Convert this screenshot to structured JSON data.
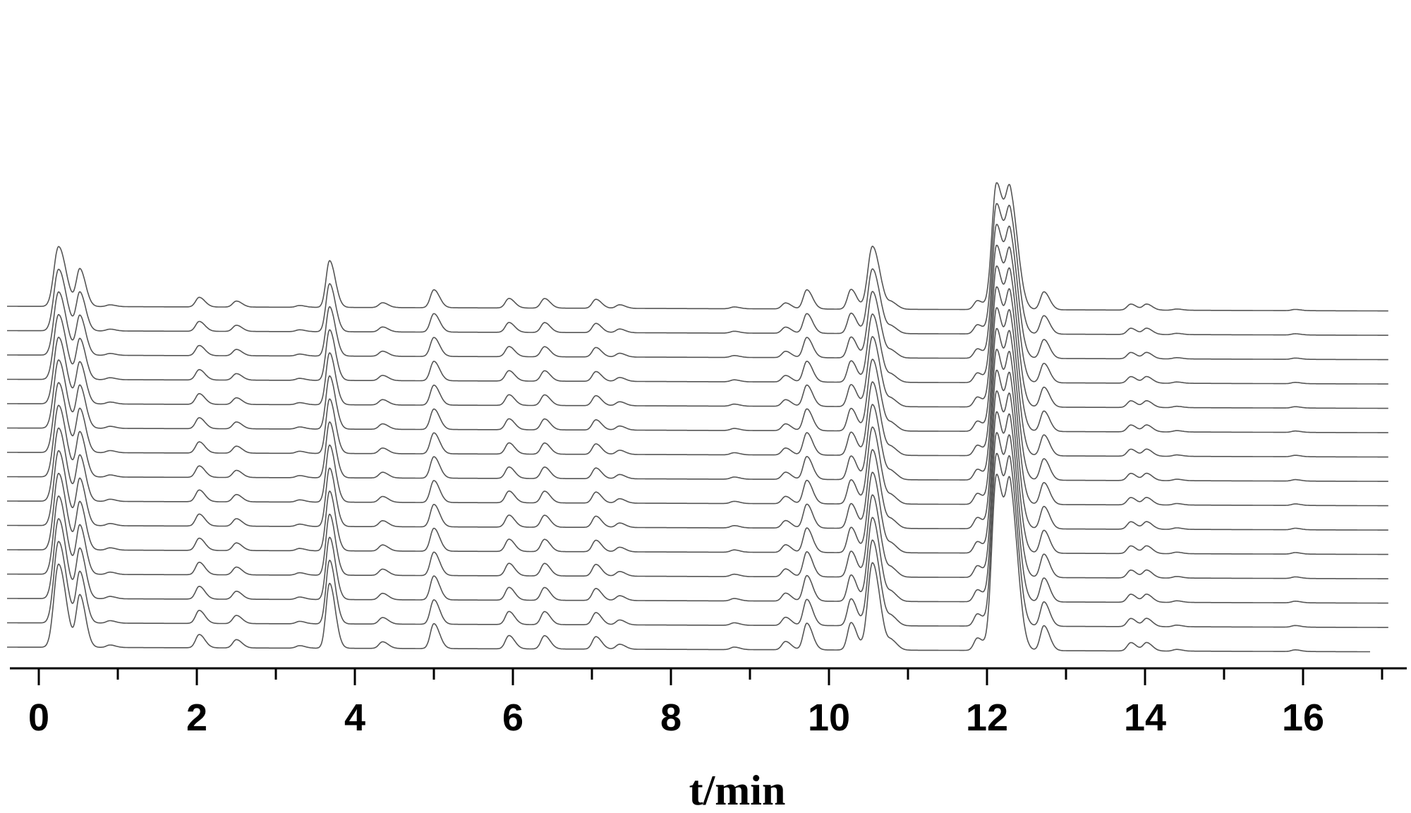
{
  "chart_data": {
    "type": "line",
    "title": "",
    "xlabel": "t/min",
    "ylabel": "",
    "xlim": [
      0,
      17.2
    ],
    "x_major_ticks": [
      0,
      2,
      4,
      6,
      8,
      10,
      12,
      14,
      16
    ],
    "x_tick_labels": [
      "0",
      "2",
      "4",
      "6",
      "8",
      "10",
      "12",
      "14",
      "16"
    ],
    "x_minor_tick_step": 1,
    "grid": false,
    "legend": "none",
    "overlay": "stacked offset chromatograms",
    "trace_count": 15,
    "trace_color": "#555555",
    "baseline_drift_per_trace_start_end": [
      0,
      0.3
    ],
    "peaks": [
      {
        "t": 0.25,
        "height": 1.0
      },
      {
        "t": 0.52,
        "height": 0.62
      },
      {
        "t": 0.9,
        "height": 0.03
      },
      {
        "t": 2.03,
        "height": 0.16
      },
      {
        "t": 2.5,
        "height": 0.1
      },
      {
        "t": 3.3,
        "height": 0.03
      },
      {
        "t": 3.68,
        "height": 0.78
      },
      {
        "t": 4.35,
        "height": 0.08
      },
      {
        "t": 5.0,
        "height": 0.3
      },
      {
        "t": 5.95,
        "height": 0.16
      },
      {
        "t": 6.4,
        "height": 0.16
      },
      {
        "t": 7.05,
        "height": 0.15
      },
      {
        "t": 7.35,
        "height": 0.06
      },
      {
        "t": 8.8,
        "height": 0.03
      },
      {
        "t": 9.45,
        "height": 0.1
      },
      {
        "t": 9.72,
        "height": 0.32
      },
      {
        "t": 10.28,
        "height": 0.33
      },
      {
        "t": 10.55,
        "height": 1.05
      },
      {
        "t": 10.8,
        "height": 0.1
      },
      {
        "t": 11.88,
        "height": 0.15
      },
      {
        "t": 12.12,
        "height": 2.1
      },
      {
        "t": 12.3,
        "height": 1.7
      },
      {
        "t": 12.72,
        "height": 0.3
      },
      {
        "t": 13.82,
        "height": 0.1
      },
      {
        "t": 14.02,
        "height": 0.1
      },
      {
        "t": 14.4,
        "height": 0.02
      },
      {
        "t": 15.9,
        "height": 0.02
      }
    ]
  }
}
